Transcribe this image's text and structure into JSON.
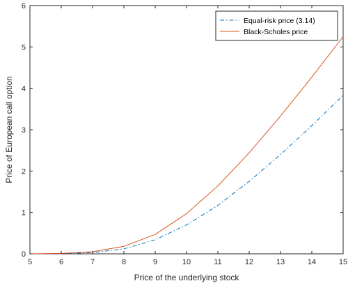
{
  "chart_data": {
    "type": "line",
    "title": "",
    "xlabel": "Price of the underlying stock",
    "ylabel": "Price of European call option",
    "xlim": [
      5,
      15
    ],
    "ylim": [
      0,
      6
    ],
    "xticks": [
      5,
      6,
      7,
      8,
      9,
      10,
      11,
      12,
      13,
      14,
      15
    ],
    "yticks": [
      0,
      1,
      2,
      3,
      4,
      5,
      6
    ],
    "grid": false,
    "legend_position": "top-right",
    "series": [
      {
        "name": "Equal-risk price (3.14)",
        "color": "#0072bd",
        "line_style": "dash-dot",
        "x": [
          5,
          6,
          7,
          8,
          9,
          10,
          11,
          12,
          13,
          14,
          15
        ],
        "y": [
          0.0,
          0.0,
          0.03,
          0.12,
          0.34,
          0.7,
          1.17,
          1.75,
          2.4,
          3.1,
          3.83
        ]
      },
      {
        "name": "Black-Scholes price",
        "color": "#d95319",
        "line_style": "solid",
        "x": [
          5,
          6,
          7,
          8,
          9,
          10,
          11,
          12,
          13,
          14,
          15
        ],
        "y": [
          0.0,
          0.01,
          0.05,
          0.18,
          0.47,
          0.97,
          1.64,
          2.44,
          3.33,
          4.27,
          5.25
        ]
      }
    ]
  }
}
